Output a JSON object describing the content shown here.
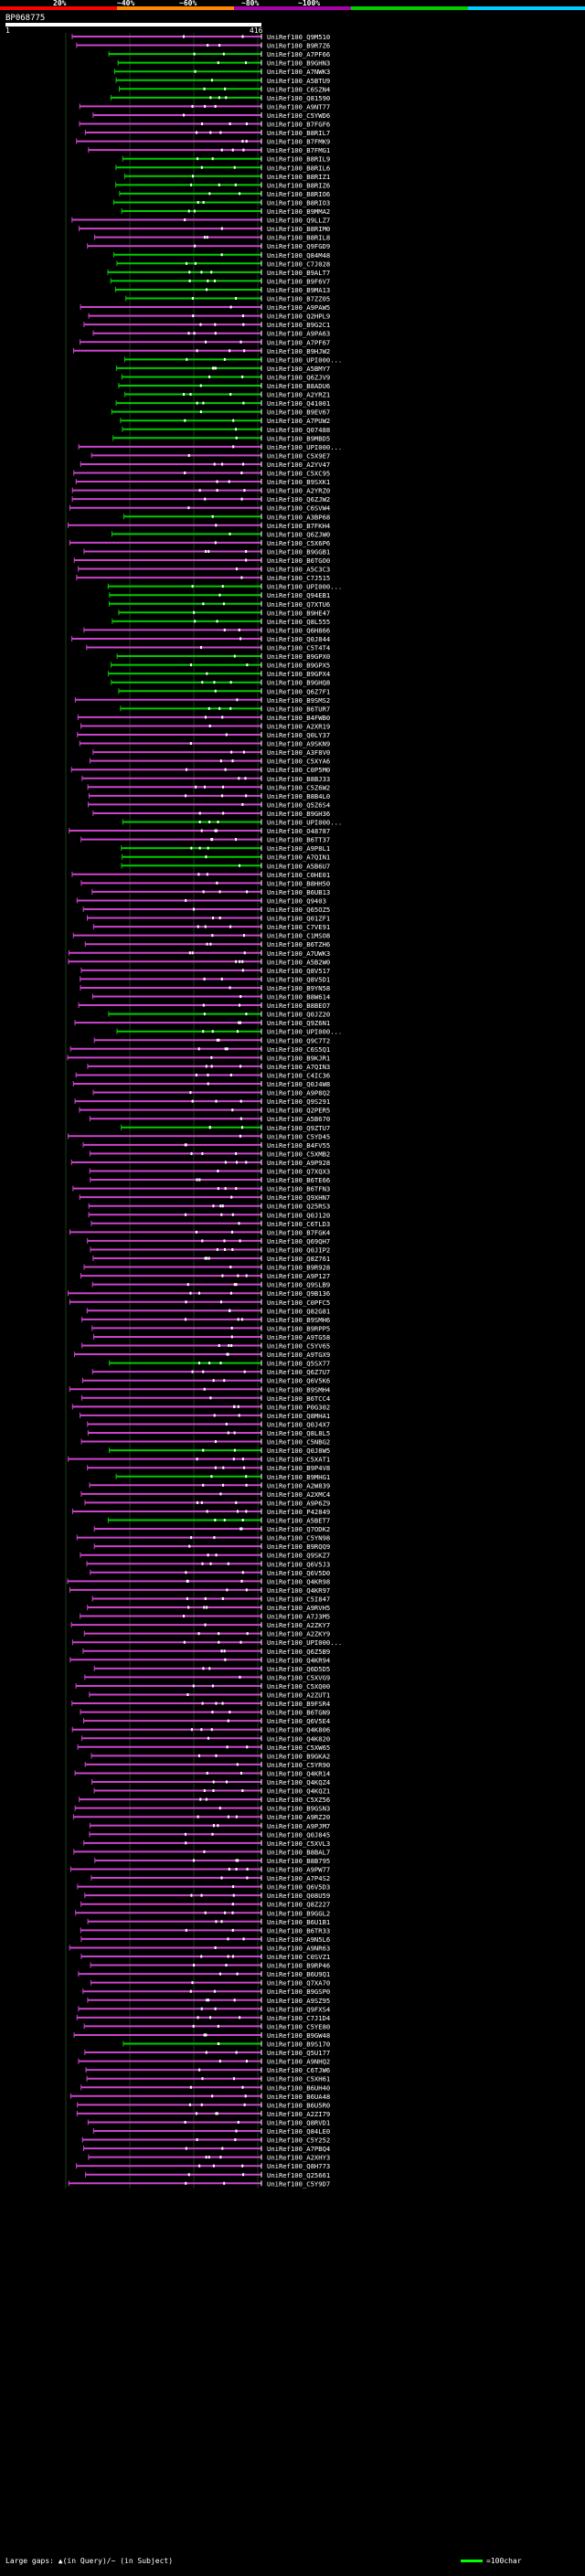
{
  "header": {
    "query_id": "BP068775",
    "query_start": "1",
    "query_end": "416",
    "scale_labels": [
      "20%",
      "~40%",
      "~60%",
      "~80%",
      "~100%"
    ],
    "scale_colors": [
      "#ff0000",
      "#ff8800",
      "#aa00aa",
      "#00cc00",
      "#00ccff"
    ]
  },
  "legend": {
    "text": "Large gaps: ▲(in Query)/~ (in Subject)",
    "scale_text": "=100char"
  },
  "colors": {
    "magenta": "#cc44cc",
    "green": "#00cc00"
  },
  "hits": [
    "UniRef100_Q9M510",
    "UniRef100_B9R7Z6",
    "UniRef100_A7PF66",
    "UniRef100_B9GHN3",
    "UniRef100_A7NWK3",
    "UniRef100_A5BTU9",
    "UniRef100_C6SZN4",
    "UniRef100_Q81590",
    "UniRef100_A9NT77",
    "UniRef100_C5YWD6",
    "UniRef100_B7FGF6",
    "UniRef100_B8RIL7",
    "UniRef100_B7FMK9",
    "UniRef100_B7FMG1",
    "UniRef100_B8RIL9",
    "UniRef100_B8RIL6",
    "UniRef100_B8RIZ1",
    "UniRef100_B8RIZ6",
    "UniRef100_B8RIO6",
    "UniRef100_B8RIO3",
    "UniRef100_B9MMA2",
    "UniRef100_Q9LLZ7",
    "UniRef100_B8RIM0",
    "UniRef100_B8RIL8",
    "UniRef100_Q9FGD9",
    "UniRef100_Q84M48",
    "UniRef100_C7J028",
    "UniRef100_B9ALT7",
    "UniRef100_B9F6V7",
    "UniRef100_B9MA13",
    "UniRef100_B7ZZ05",
    "UniRef100_A9PAW5",
    "UniRef100_Q2HPL9",
    "UniRef100_B9G2C1",
    "UniRef100_A9PA63",
    "UniRef100_A7PF67",
    "UniRef100_B9HJW2",
    "UniRef100_UPI000...",
    "UniRef100_A5BMY7",
    "UniRef100_Q6ZJV9",
    "UniRef100_B8ADU6",
    "UniRef100_A2YRZ1",
    "UniRef100_Q41001",
    "UniRef100_B9EV67",
    "UniRef100_A7PUW2",
    "UniRef100_Q07488",
    "UniRef100_B9MBD5",
    "UniRef100_UPI000...",
    "UniRef100_C5X9E7",
    "UniRef100_A2YV47",
    "UniRef100_C5XC95",
    "UniRef100_B9SXK1",
    "UniRef100_A2YRZ0",
    "UniRef100_Q6ZJW2",
    "UniRef100_C6SVW4",
    "UniRef100_A3BP68",
    "UniRef100_B7FKH4",
    "UniRef100_Q6ZJW0",
    "UniRef100_C5X6P6",
    "UniRef100_B9GGB1",
    "UniRef100_B6TGO0",
    "UniRef100_A5C3C3",
    "UniRef100_C7J515",
    "UniRef100_UPI000...",
    "UniRef100_Q94EB1",
    "UniRef100_Q7XTU6",
    "UniRef100_B9HE47",
    "UniRef100_Q8L555",
    "UniRef100_Q6H866",
    "UniRef100_Q0J844",
    "UniRef100_C5T4T4",
    "UniRef100_B9GPX0",
    "UniRef100_B9GPX5",
    "UniRef100_B9GPX4",
    "UniRef100_B9GHQ8",
    "UniRef100_Q6Z7F1",
    "UniRef100_B9SMS2",
    "UniRef100_B6TUR7",
    "UniRef100_B4FWB0",
    "UniRef100_A2XR19",
    "UniRef100_Q0LY37",
    "UniRef100_A9SKN9",
    "UniRef100_A3F8V0",
    "UniRef100_C5XYA6",
    "UniRef100_C0P5M0",
    "UniRef100_B8BJ33",
    "UniRef100_C5Z6W2",
    "UniRef100_B8B4L0",
    "UniRef100_Q5Z6S4",
    "UniRef100_B9GH36",
    "UniRef100_UPI000...",
    "UniRef100_O48787",
    "UniRef100_B6TT37",
    "UniRef100_A9P8L1",
    "UniRef100_A7QIN1",
    "UniRef100_A5B6U7",
    "UniRef100_C0HE01",
    "UniRef100_B8HH50",
    "UniRef100_B6UB13",
    "UniRef100_Q9403",
    "UniRef100_Q65OZ5",
    "UniRef100_Q01ZF1",
    "UniRef100_C7VE91",
    "UniRef100_C1MSO8",
    "UniRef100_B6TZH6",
    "UniRef100_A7UWK3",
    "UniRef100_A5B2W0",
    "UniRef100_Q8V517",
    "UniRef100_Q8V5D1",
    "UniRef100_B9YN58",
    "UniRef100_B8W614",
    "UniRef100_B8BEO7",
    "UniRef100_Q0JZ20",
    "UniRef100_Q9Z6N1",
    "UniRef100_UPI000...",
    "UniRef100_Q9C7T2",
    "UniRef100_C6S5Q1",
    "UniRef100_B9KJR1",
    "UniRef100_A7QIN3",
    "UniRef100_C4IC36",
    "UniRef100_Q0J4W8",
    "UniRef100_A9P8Q2",
    "UniRef100_Q9S291",
    "UniRef100_Q2PER5",
    "UniRef100_A5B670",
    "UniRef100_Q9ZTU7",
    "UniRef100_C5YD45",
    "UniRef100_B4FV55",
    "UniRef100_C5XMB2",
    "UniRef100_A9P928",
    "UniRef100_Q7XQX3",
    "UniRef100_B6TE66",
    "UniRef100_B6TFN3",
    "UniRef100_Q9XHN7",
    "UniRef100_Q25RS3",
    "UniRef100_Q0J120",
    "UniRef100_C6TLD3",
    "UniRef100_B7FGK4",
    "UniRef100_Q69QH7",
    "UniRef100_Q0JIP2",
    "UniRef100_Q8Z761",
    "UniRef100_B9R928",
    "UniRef100_A9P127",
    "UniRef100_Q9SLB9",
    "UniRef100_Q9B136",
    "UniRef100_C0PFC5",
    "UniRef100_Q82G81",
    "UniRef100_B9SMH6",
    "UniRef100_B9RPP5",
    "UniRef100_A9TG58",
    "UniRef100_C5YV65",
    "UniRef100_A9TGX9",
    "UniRef100_Q5SX77",
    "UniRef100_Q6Z7U7",
    "UniRef100_Q6V5K6",
    "UniRef100_B9SMH4",
    "UniRef100_B6TCC4",
    "UniRef100_P0G302",
    "UniRef100_Q8MHA1",
    "UniRef100_Q0J4X7",
    "UniRef100_Q8L8L5",
    "UniRef100_C5NBG2",
    "UniRef100_Q0J8W5",
    "UniRef100_C5XAT1",
    "UniRef100_B9P4V8",
    "UniRef100_B9MHG1",
    "UniRef100_A2W839",
    "UniRef100_A2XMC4",
    "UniRef100_A9P6Z9",
    "UniRef100_P42849",
    "UniRef100_A5BET7",
    "UniRef100_Q7ODK2",
    "UniRef100_C5YN98",
    "UniRef100_B9RQQ9",
    "UniRef100_Q9SKZ7",
    "UniRef100_Q6V5J3",
    "UniRef100_Q6V5D0",
    "UniRef100_Q4KR98",
    "UniRef100_Q4KR97",
    "UniRef100_C5I847",
    "UniRef100_A9RVH5",
    "UniRef100_A7J3M5",
    "UniRef100_A2ZKY7",
    "UniRef100_A2ZKY9",
    "UniRef100_UPI000...",
    "UniRef100_Q6Z5B9",
    "UniRef100_Q4KR94",
    "UniRef100_Q6D5D5",
    "UniRef100_C5XVG9",
    "UniRef100_C5XQ00",
    "UniRef100_A2ZUT1",
    "UniRef100_B9FSR4",
    "UniRef100_B6TGN9",
    "UniRef100_Q6V5E4",
    "UniRef100_Q4K806",
    "UniRef100_Q4K820",
    "UniRef100_C5XW65",
    "UniRef100_B9GKA2",
    "UniRef100_C5YR90",
    "UniRef100_Q4KR14",
    "UniRef100_Q4KQZ4",
    "UniRef100_Q4KQZ1",
    "UniRef100_C5XZ56",
    "UniRef100_B9GSN3",
    "UniRef100_A9RZ20",
    "UniRef100_A9PJM7",
    "UniRef100_Q0J845",
    "UniRef100_C5XVL3",
    "UniRef100_B8BAL7",
    "UniRef100_B8B795",
    "UniRef100_A9PW77",
    "UniRef100_A7P4S2",
    "UniRef100_Q6V5D3",
    "UniRef100_Q08U59",
    "UniRef100_Q8Z227",
    "UniRef100_B9GGL2",
    "UniRef100_B6U1B1",
    "UniRef100_B6TR33",
    "UniRef100_A9N5L6",
    "UniRef100_A9NR63",
    "UniRef100_C0SVZ1",
    "UniRef100_B9RP46",
    "UniRef100_B6U9Q1",
    "UniRef100_Q7XA70",
    "UniRef100_B9GSP0",
    "UniRef100_A9SZ95",
    "UniRef100_Q9FXS4",
    "UniRef100_C7J1D4",
    "UniRef100_C5YE80",
    "UniRef100_B9GW48",
    "UniRef100_B9S170",
    "UniRef100_Q5U177",
    "UniRef100_A9NHQ2",
    "UniRef100_C6TJW6",
    "UniRef100_C5XH61",
    "UniRef100_B6UH40",
    "UniRef100_B6UA48",
    "UniRef100_B6U5R0",
    "UniRef100_A2ZI79",
    "UniRef100_Q8RVD1",
    "UniRef100_Q84LE0",
    "UniRef100_C5Y252",
    "UniRef100_A7PBQ4",
    "UniRef100_A2XHY3",
    "UniRef100_Q8H773",
    "UniRef100_Q25661",
    "UniRef100_C5Y9D7"
  ]
}
